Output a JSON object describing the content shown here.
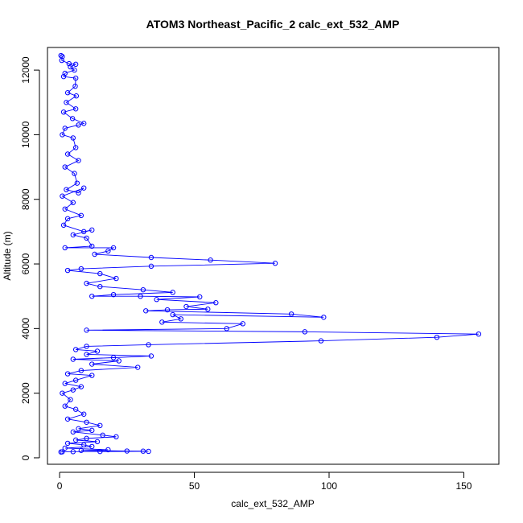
{
  "chart_data": {
    "type": "scatter",
    "title": "ATOM3 Northeast_Pacific_2 calc_ext_532_AMP",
    "xlabel": "calc_ext_532_AMP",
    "ylabel": "Altitude (m)",
    "xlim": [
      -4.5,
      163
    ],
    "ylim": [
      -200,
      12700
    ],
    "x_ticks": [
      0,
      50,
      100,
      150
    ],
    "y_ticks": [
      0,
      2000,
      4000,
      6000,
      8000,
      10000,
      12000
    ],
    "point_color": "#0000ff",
    "line_color": "#0000ff",
    "grid": false,
    "series": [
      {
        "points": [
          [
            0.5,
            12450
          ],
          [
            1.0,
            12420
          ],
          [
            0.8,
            12300
          ],
          [
            3.5,
            12200
          ],
          [
            6.0,
            12180
          ],
          [
            4.0,
            12100
          ],
          [
            5.5,
            12000
          ],
          [
            2.0,
            11900
          ],
          [
            1.5,
            11800
          ],
          [
            6.0,
            11750
          ],
          [
            5.8,
            11500
          ],
          [
            3.0,
            11300
          ],
          [
            6.2,
            11200
          ],
          [
            2.5,
            11000
          ],
          [
            6.0,
            10800
          ],
          [
            1.5,
            10700
          ],
          [
            4.8,
            10500
          ],
          [
            9.0,
            10350
          ],
          [
            7.0,
            10300
          ],
          [
            2.0,
            10200
          ],
          [
            1.0,
            10000
          ],
          [
            5.0,
            9900
          ],
          [
            6.0,
            9600
          ],
          [
            3.0,
            9400
          ],
          [
            7.0,
            9200
          ],
          [
            2.0,
            9000
          ],
          [
            5.5,
            8800
          ],
          [
            6.5,
            8500
          ],
          [
            2.5,
            8300
          ],
          [
            7.0,
            8200
          ],
          [
            9.0,
            8350
          ],
          [
            1.0,
            8100
          ],
          [
            5.0,
            7900
          ],
          [
            2.0,
            7700
          ],
          [
            8.0,
            7500
          ],
          [
            3.0,
            7400
          ],
          [
            1.5,
            7200
          ],
          [
            9.0,
            7000
          ],
          [
            12.0,
            7050
          ],
          [
            5.0,
            6900
          ],
          [
            10.0,
            6800
          ],
          [
            12.0,
            6550
          ],
          [
            2.0,
            6500
          ],
          [
            20.0,
            6500
          ],
          [
            18.0,
            6400
          ],
          [
            13.0,
            6300
          ],
          [
            34.0,
            6200
          ],
          [
            56.0,
            6120
          ],
          [
            80.0,
            6020
          ],
          [
            34.0,
            5930
          ],
          [
            8.0,
            5850
          ],
          [
            3.0,
            5800
          ],
          [
            15.0,
            5700
          ],
          [
            21.0,
            5550
          ],
          [
            10.0,
            5400
          ],
          [
            15.0,
            5300
          ],
          [
            31.0,
            5200
          ],
          [
            42.0,
            5120
          ],
          [
            20.0,
            5050
          ],
          [
            12.0,
            5000
          ],
          [
            30.0,
            5000
          ],
          [
            52.0,
            4980
          ],
          [
            36.0,
            4900
          ],
          [
            58.0,
            4800
          ],
          [
            47.0,
            4680
          ],
          [
            55.0,
            4600
          ],
          [
            40.0,
            4580
          ],
          [
            32.0,
            4550
          ],
          [
            86.0,
            4450
          ],
          [
            98.0,
            4350
          ],
          [
            42.0,
            4430
          ],
          [
            45.0,
            4300
          ],
          [
            38.0,
            4200
          ],
          [
            68.0,
            4150
          ],
          [
            62.0,
            4000
          ],
          [
            10.0,
            3950
          ],
          [
            91.0,
            3900
          ],
          [
            155.5,
            3830
          ],
          [
            140.0,
            3730
          ],
          [
            97.0,
            3620
          ],
          [
            33.0,
            3500
          ],
          [
            10.0,
            3450
          ],
          [
            6.0,
            3350
          ],
          [
            14.0,
            3300
          ],
          [
            10.0,
            3200
          ],
          [
            34.0,
            3150
          ],
          [
            20.0,
            3100
          ],
          [
            5.0,
            3050
          ],
          [
            22.0,
            3000
          ],
          [
            12.0,
            2900
          ],
          [
            29.0,
            2800
          ],
          [
            8.0,
            2700
          ],
          [
            3.0,
            2600
          ],
          [
            12.0,
            2550
          ],
          [
            6.0,
            2400
          ],
          [
            2.0,
            2300
          ],
          [
            8.0,
            2200
          ],
          [
            5.0,
            2100
          ],
          [
            1.0,
            2000
          ],
          [
            4.0,
            1800
          ],
          [
            2.0,
            1600
          ],
          [
            6.0,
            1500
          ],
          [
            9.0,
            1350
          ],
          [
            3.0,
            1200
          ],
          [
            10.0,
            1100
          ],
          [
            15.0,
            1000
          ],
          [
            7.0,
            900
          ],
          [
            12.0,
            850
          ],
          [
            5.0,
            800
          ],
          [
            16.0,
            700
          ],
          [
            21.0,
            650
          ],
          [
            10.0,
            600
          ],
          [
            6.0,
            550
          ],
          [
            14.0,
            500
          ],
          [
            3.0,
            450
          ],
          [
            9.0,
            400
          ],
          [
            12.0,
            350
          ],
          [
            2.0,
            300
          ],
          [
            18.0,
            250
          ],
          [
            8.0,
            230
          ],
          [
            25.0,
            210
          ],
          [
            31.0,
            205
          ],
          [
            33.0,
            200
          ],
          [
            15.0,
            195
          ],
          [
            5.0,
            190
          ],
          [
            1.0,
            185
          ],
          [
            0.5,
            180
          ]
        ]
      }
    ]
  }
}
